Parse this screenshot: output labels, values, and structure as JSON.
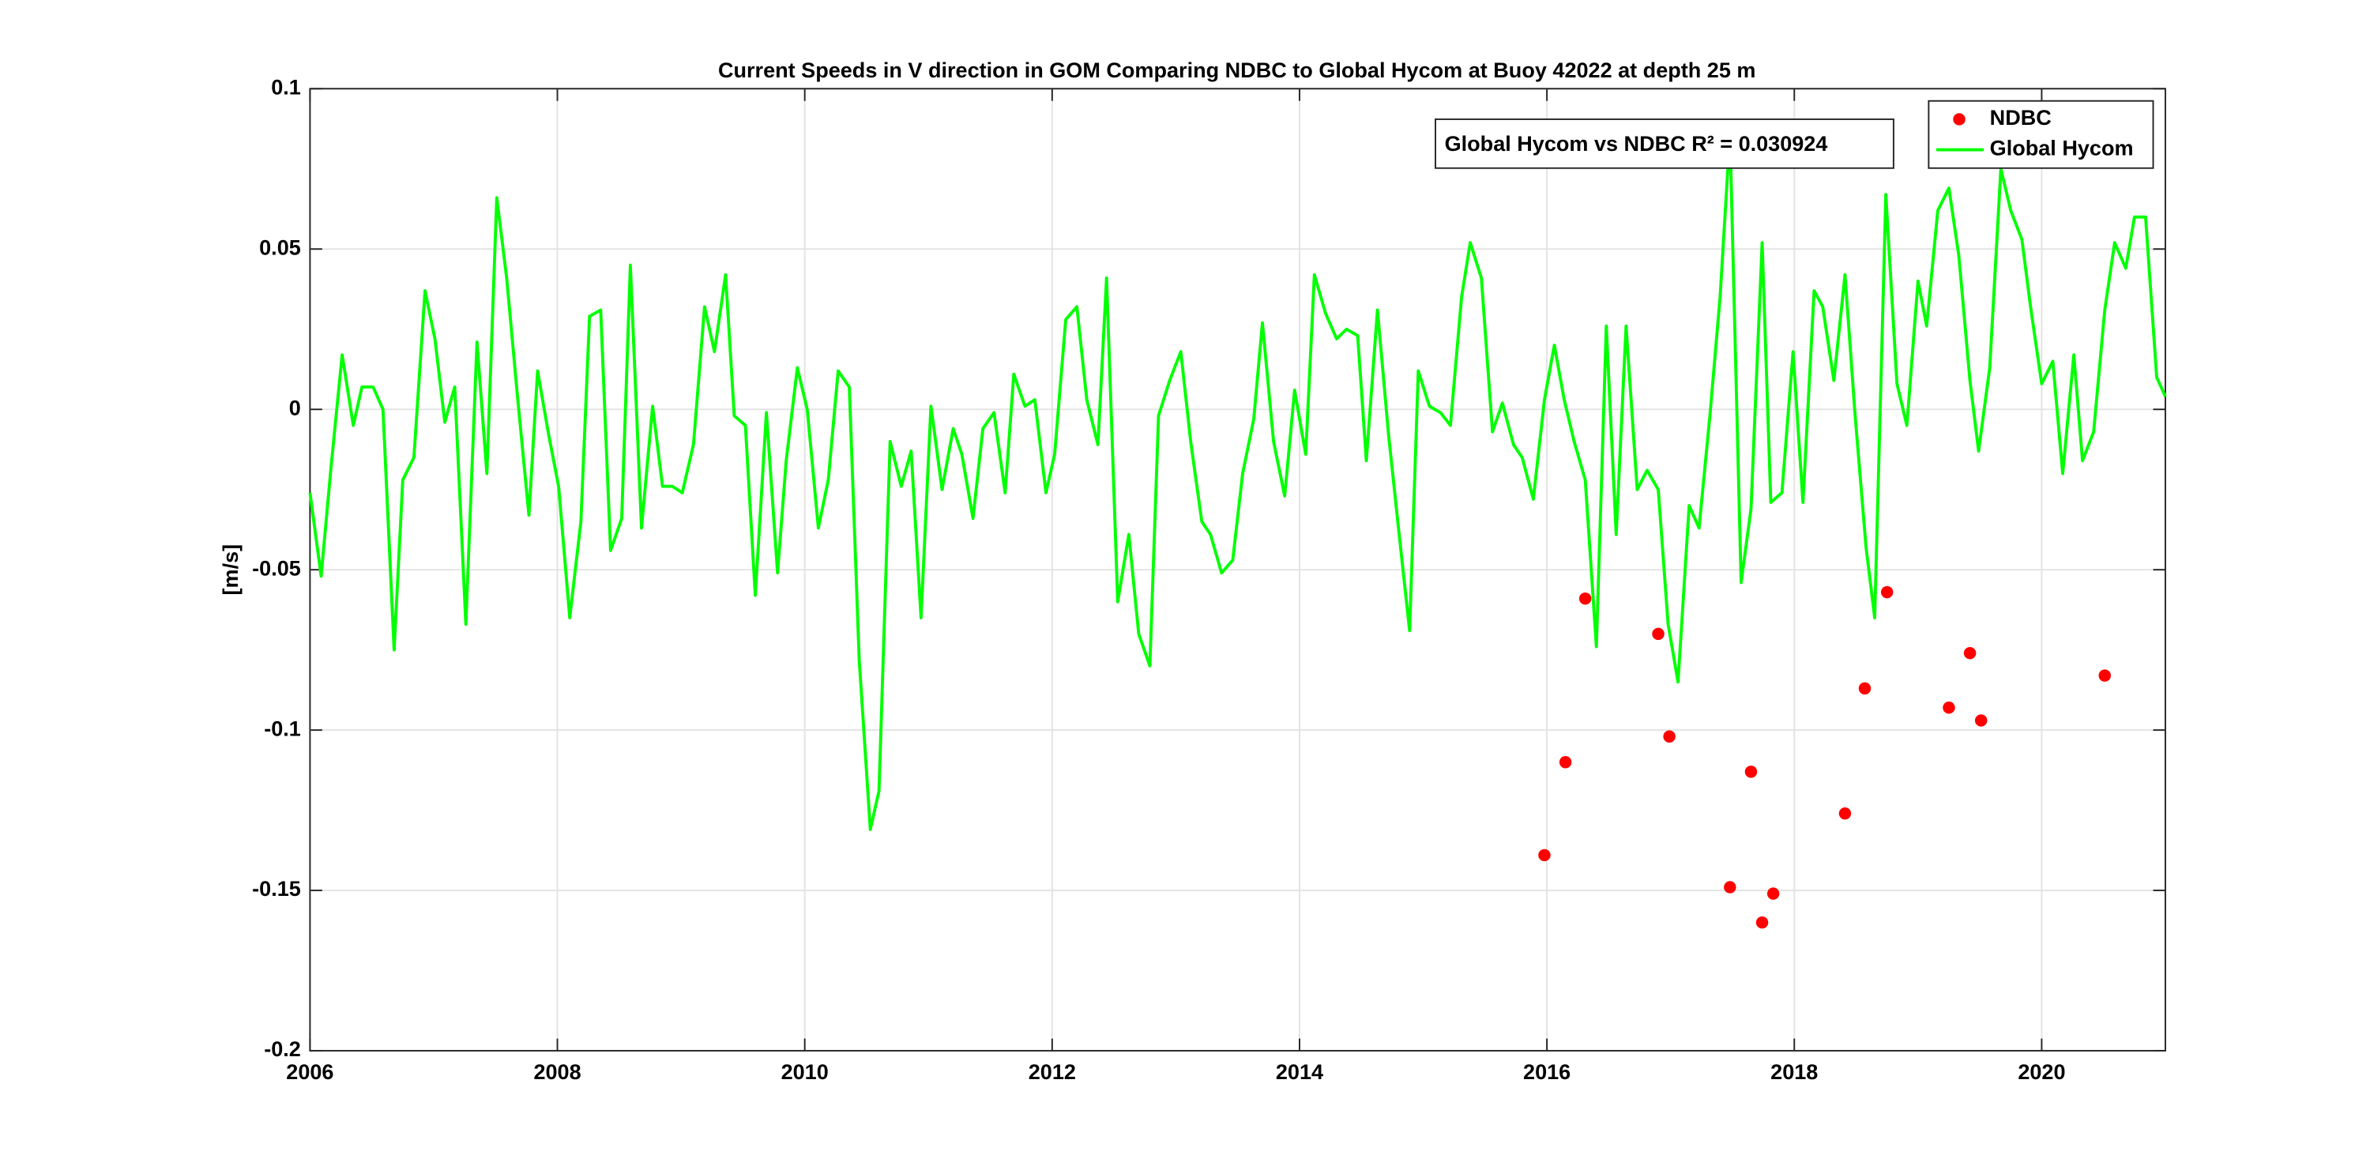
{
  "chart_data": {
    "type": "line",
    "title": "Current Speeds in V direction in GOM Comparing NDBC to Global Hycom at Buoy  42022  at depth  25 m",
    "ylabel": "[m/s]",
    "annotation": "Global Hycom vs NDBC R² = 0.030924",
    "xlim": [
      2006,
      2021
    ],
    "xticks": [
      2006,
      2008,
      2010,
      2012,
      2014,
      2016,
      2018,
      2020
    ],
    "ylim": [
      -0.2,
      0.1
    ],
    "yticks": [
      -0.2,
      -0.15,
      -0.1,
      -0.05,
      0,
      0.05,
      0.1
    ],
    "grid": true,
    "legend": "top-right",
    "series": [
      {
        "name": "NDBC",
        "color": "#ff0000",
        "marker": "dot",
        "x": [
          2015.98,
          2016.15,
          2016.31,
          2016.9,
          2016.99,
          2017.48,
          2017.65,
          2017.74,
          2017.83,
          2018.41,
          2018.57,
          2018.75,
          2019.25,
          2019.42,
          2019.51,
          2020.51
        ],
        "values": [
          -0.139,
          -0.11,
          -0.059,
          -0.07,
          -0.102,
          -0.149,
          -0.113,
          -0.16,
          -0.151,
          -0.126,
          -0.087,
          -0.057,
          -0.093,
          -0.076,
          -0.097,
          -0.083
        ]
      },
      {
        "name": "Global Hycom",
        "color": "#00ff00",
        "marker": "line",
        "x": [
          2006,
          2006.09,
          2006.17,
          2006.26,
          2006.35,
          2006.42,
          2006.51,
          2006.59,
          2006.68,
          2006.75,
          2006.84,
          2006.93,
          2007.01,
          2007.09,
          2007.17,
          2007.26,
          2007.35,
          2007.43,
          2007.51,
          2007.59,
          2007.68,
          2007.77,
          2007.84,
          2007.93,
          2008.01,
          2008.1,
          2008.19,
          2008.26,
          2008.35,
          2008.43,
          2008.52,
          2008.59,
          2008.68,
          2008.77,
          2008.85,
          2008.93,
          2009.01,
          2009.1,
          2009.19,
          2009.27,
          2009.36,
          2009.43,
          2009.52,
          2009.6,
          2009.69,
          2009.78,
          2009.85,
          2009.94,
          2010.02,
          2010.11,
          2010.19,
          2010.27,
          2010.36,
          2010.44,
          2010.53,
          2010.6,
          2010.69,
          2010.78,
          2010.86,
          2010.94,
          2011.02,
          2011.11,
          2011.2,
          2011.27,
          2011.36,
          2011.44,
          2011.53,
          2011.62,
          2011.69,
          2011.78,
          2011.86,
          2011.95,
          2012.02,
          2012.11,
          2012.2,
          2012.28,
          2012.37,
          2012.44,
          2012.53,
          2012.62,
          2012.7,
          2012.79,
          2012.86,
          2012.95,
          2013.04,
          2013.12,
          2013.21,
          2013.28,
          2013.37,
          2013.46,
          2013.54,
          2013.63,
          2013.7,
          2013.79,
          2013.88,
          2013.96,
          2014.05,
          2014.12,
          2014.21,
          2014.3,
          2014.38,
          2014.47,
          2014.54,
          2014.63,
          2014.72,
          2014.8,
          2014.89,
          2014.96,
          2015.05,
          2015.14,
          2015.22,
          2015.31,
          2015.38,
          2015.47,
          2015.56,
          2015.64,
          2015.73,
          2015.8,
          2015.89,
          2015.98,
          2016.06,
          2016.14,
          2016.22,
          2016.31,
          2016.4,
          2016.48,
          2016.56,
          2016.64,
          2016.73,
          2016.81,
          2016.9,
          2016.98,
          2017.06,
          2017.15,
          2017.23,
          2017.32,
          2017.4,
          2017.48,
          2017.57,
          2017.65,
          2017.74,
          2017.81,
          2017.9,
          2017.99,
          2018.07,
          2018.16,
          2018.23,
          2018.32,
          2018.41,
          2018.49,
          2018.58,
          2018.65,
          2018.74,
          2018.83,
          2018.91,
          2019,
          2019.07,
          2019.16,
          2019.25,
          2019.33,
          2019.42,
          2019.49,
          2019.58,
          2019.67,
          2019.75,
          2019.84,
          2019.91,
          2020,
          2020.09,
          2020.17,
          2020.26,
          2020.33,
          2020.42,
          2020.51,
          2020.59,
          2020.68,
          2020.75,
          2020.84,
          2020.93,
          2021
        ],
        "values": [
          -0.026,
          -0.052,
          -0.018,
          0.017,
          -0.005,
          0.007,
          0.007,
          0,
          -0.075,
          -0.022,
          -0.015,
          0.037,
          0.022,
          -0.004,
          0.007,
          -0.067,
          0.021,
          -0.02,
          0.066,
          0.041,
          0.003,
          -0.033,
          0.012,
          -0.008,
          -0.024,
          -0.065,
          -0.035,
          0.029,
          0.031,
          -0.044,
          -0.034,
          0.045,
          -0.037,
          0.001,
          -0.024,
          -0.024,
          -0.026,
          -0.011,
          0.032,
          0.018,
          0.042,
          -0.002,
          -0.005,
          -0.058,
          -0.001,
          -0.051,
          -0.016,
          0.013,
          0,
          -0.037,
          -0.022,
          0.012,
          0.007,
          -0.078,
          -0.131,
          -0.119,
          -0.01,
          -0.024,
          -0.013,
          -0.065,
          0.001,
          -0.025,
          -0.006,
          -0.014,
          -0.034,
          -0.006,
          -0.001,
          -0.026,
          0.011,
          0.001,
          0.003,
          -0.026,
          -0.014,
          0.028,
          0.032,
          0.003,
          -0.011,
          0.041,
          -0.06,
          -0.039,
          -0.07,
          -0.08,
          -0.002,
          0.009,
          0.018,
          -0.01,
          -0.035,
          -0.039,
          -0.051,
          -0.047,
          -0.02,
          -0.003,
          0.027,
          -0.01,
          -0.027,
          0.006,
          -0.014,
          0.042,
          0.03,
          0.022,
          0.025,
          0.023,
          -0.016,
          0.031,
          -0.008,
          -0.037,
          -0.069,
          0.012,
          0.001,
          -0.001,
          -0.005,
          0.035,
          0.052,
          0.041,
          -0.007,
          0.002,
          -0.011,
          -0.015,
          -0.028,
          0.003,
          0.02,
          0.003,
          -0.01,
          -0.022,
          -0.074,
          0.026,
          -0.039,
          0.026,
          -0.025,
          -0.019,
          -0.025,
          -0.067,
          -0.085,
          -0.03,
          -0.037,
          -0.001,
          0.035,
          0.086,
          -0.054,
          -0.031,
          0.052,
          -0.029,
          -0.026,
          0.018,
          -0.029,
          0.037,
          0.032,
          0.009,
          0.042,
          -0.001,
          -0.043,
          -0.065,
          0.067,
          0.008,
          -0.005,
          0.04,
          0.026,
          0.062,
          0.069,
          0.048,
          0.009,
          -0.013,
          0.013,
          0.075,
          0.062,
          0.053,
          0.032,
          0.008,
          0.015,
          -0.02,
          0.017,
          -0.016,
          -0.007,
          0.031,
          0.052,
          0.044,
          0.06,
          0.06,
          0.01,
          0.004
        ]
      }
    ]
  }
}
